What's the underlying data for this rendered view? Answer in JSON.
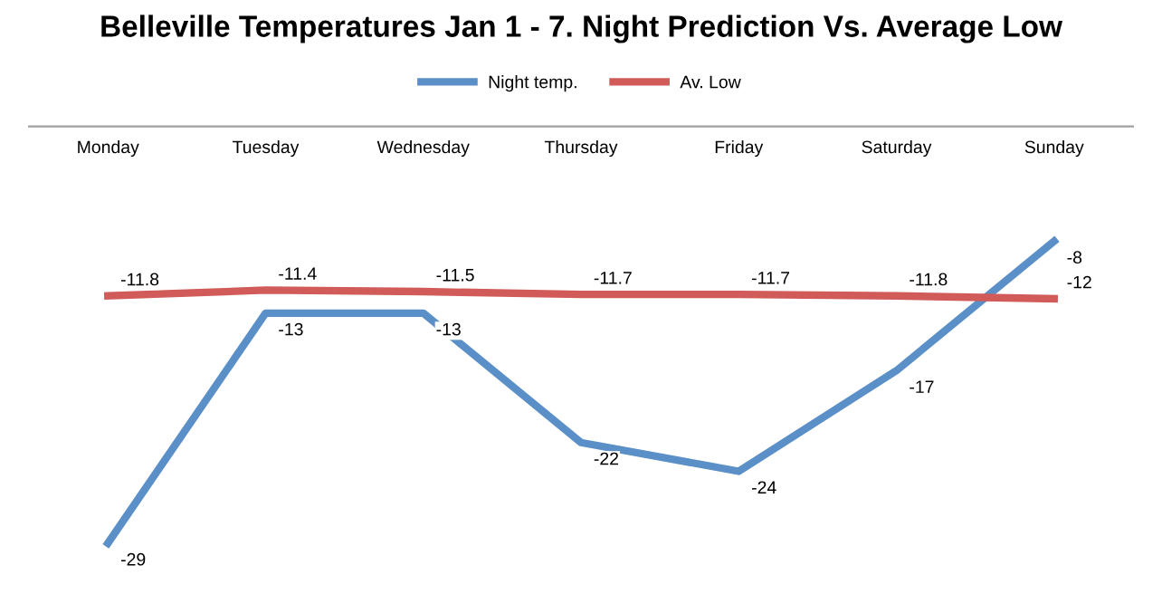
{
  "chart_data": {
    "type": "line",
    "title": "Belleville Temperatures Jan 1 - 7. Night Prediction Vs. Average Low",
    "categories": [
      "Monday",
      "Tuesday",
      "Wednesday",
      "Thursday",
      "Friday",
      "Saturday",
      "Sunday"
    ],
    "series": [
      {
        "name": "Night temp.",
        "color": "#5a8fc8",
        "values": [
          -29,
          -13,
          -13,
          -22,
          -24,
          -17,
          -8
        ]
      },
      {
        "name": "Av. Low",
        "color": "#d05b58",
        "values": [
          -11.8,
          -11.4,
          -11.5,
          -11.7,
          -11.7,
          -11.8,
          -12
        ]
      }
    ],
    "tick_labels": "x",
    "data_labels": true,
    "legend": "top",
    "grid": false,
    "marker": "none",
    "line_style": "solid"
  }
}
